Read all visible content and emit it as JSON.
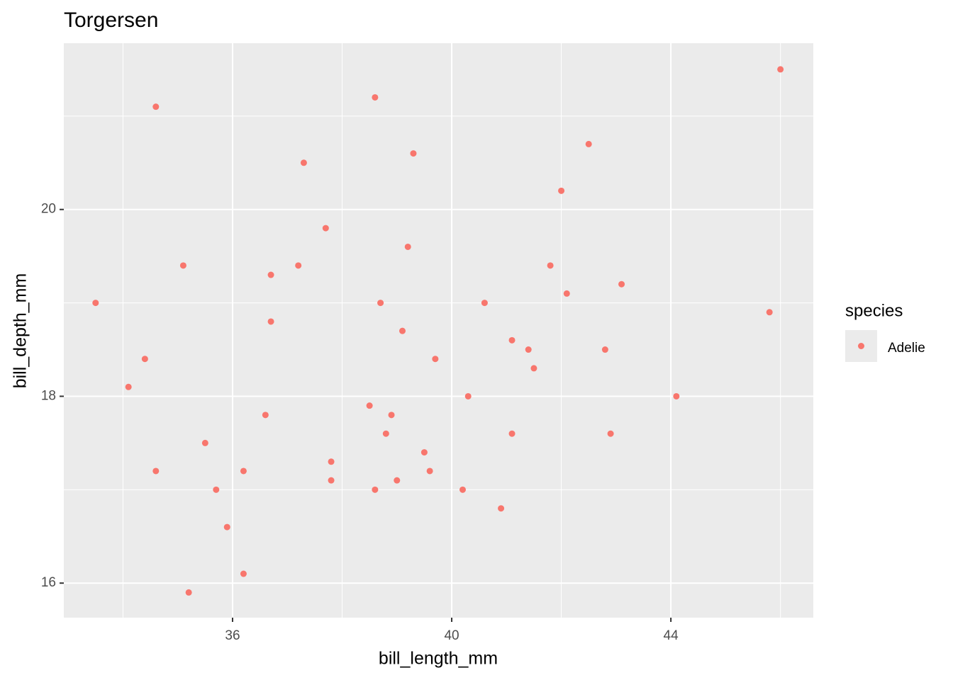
{
  "chart_data": {
    "type": "scatter",
    "title": "Torgersen",
    "x_label": "bill_length_mm",
    "y_label": "bill_depth_mm",
    "legend_title": "species",
    "legend": "right",
    "grid": true,
    "xlim": [
      32.92,
      46.6
    ],
    "ylim": [
      15.63,
      21.78
    ],
    "xticks": [
      36,
      40,
      44
    ],
    "yticks": [
      16,
      18,
      20
    ],
    "series": [
      {
        "name": "Adelie",
        "color": "#F8766D",
        "x": [
          33.5,
          34.6,
          34.6,
          34.4,
          34.1,
          35.1,
          35.2,
          35.5,
          35.7,
          35.9,
          36.2,
          36.2,
          36.6,
          36.7,
          36.7,
          37.2,
          37.3,
          37.7,
          37.8,
          37.8,
          38.5,
          38.6,
          38.6,
          38.7,
          38.8,
          38.9,
          39.0,
          39.1,
          39.2,
          39.3,
          39.5,
          39.6,
          39.7,
          40.2,
          40.3,
          40.6,
          40.9,
          41.1,
          41.1,
          41.4,
          41.5,
          41.8,
          42.0,
          42.1,
          42.5,
          42.8,
          42.9,
          43.1,
          44.1,
          45.8,
          46.0
        ],
        "values": [
          19.0,
          21.1,
          17.2,
          18.4,
          18.1,
          19.4,
          15.9,
          17.5,
          17.0,
          16.6,
          17.2,
          16.1,
          17.8,
          19.3,
          18.8,
          19.4,
          20.5,
          19.8,
          17.3,
          17.1,
          17.9,
          21.2,
          17.0,
          19.0,
          17.6,
          17.8,
          17.1,
          18.7,
          19.6,
          20.6,
          17.4,
          17.2,
          18.4,
          17.0,
          18.0,
          19.0,
          16.8,
          18.6,
          17.6,
          18.5,
          18.3,
          19.4,
          20.2,
          19.1,
          20.7,
          18.5,
          17.6,
          19.2,
          18.0,
          18.9,
          21.5
        ]
      }
    ]
  }
}
